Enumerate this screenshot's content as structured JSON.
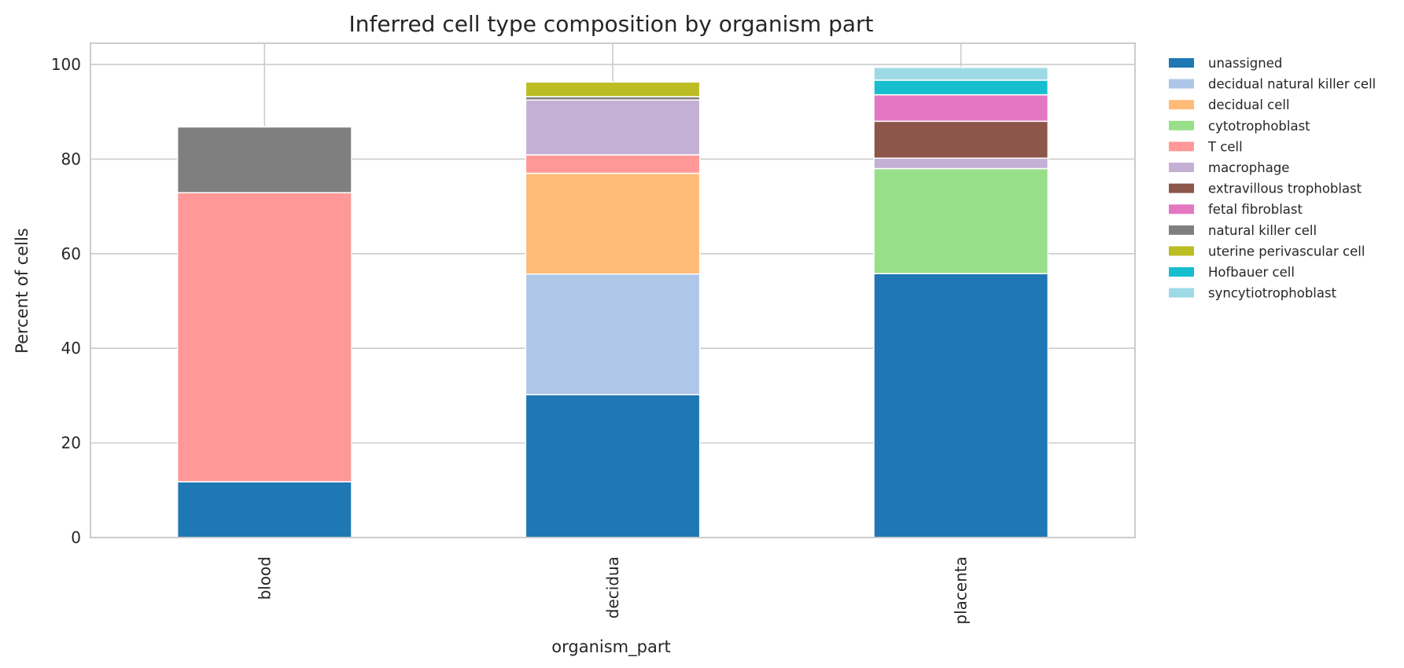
{
  "chart_data": {
    "type": "bar",
    "stacked": true,
    "title": "Inferred cell type composition by organism part",
    "xlabel": "organism_part",
    "ylabel": "Percent of cells",
    "ylim": [
      0,
      104.5
    ],
    "yticks": [
      0,
      20,
      40,
      60,
      80,
      100
    ],
    "grid": true,
    "legend_position": "outside-right",
    "categories": [
      "blood",
      "decidua",
      "placenta"
    ],
    "series": [
      {
        "name": "unassigned",
        "color": "#1f77b4",
        "values": [
          11.8,
          30.2,
          55.8
        ]
      },
      {
        "name": "decidual natural killer cell",
        "color": "#aec7e8",
        "values": [
          0,
          25.5,
          0
        ]
      },
      {
        "name": "decidual cell",
        "color": "#ffbb78",
        "values": [
          0,
          21.3,
          0
        ]
      },
      {
        "name": "cytotrophoblast",
        "color": "#98df8a",
        "values": [
          0,
          0,
          22.2
        ]
      },
      {
        "name": "T cell",
        "color": "#ff9896",
        "values": [
          61.1,
          3.9,
          0
        ]
      },
      {
        "name": "macrophage",
        "color": "#c5b0d5",
        "values": [
          0,
          11.6,
          2.2
        ]
      },
      {
        "name": "extravillous trophoblast",
        "color": "#8c564b",
        "values": [
          0,
          0,
          7.8
        ]
      },
      {
        "name": "fetal fibroblast",
        "color": "#e377c2",
        "values": [
          0,
          0,
          5.6
        ]
      },
      {
        "name": "natural killer cell",
        "color": "#7f7f7f",
        "values": [
          13.9,
          0.7,
          0
        ]
      },
      {
        "name": "uterine perivascular cell",
        "color": "#bcbd22",
        "values": [
          0,
          3.1,
          0
        ]
      },
      {
        "name": "Hofbauer cell",
        "color": "#17becf",
        "values": [
          0,
          0,
          3.1
        ]
      },
      {
        "name": "syncytiotrophoblast",
        "color": "#9edae5",
        "values": [
          0,
          0,
          2.7
        ]
      }
    ]
  }
}
